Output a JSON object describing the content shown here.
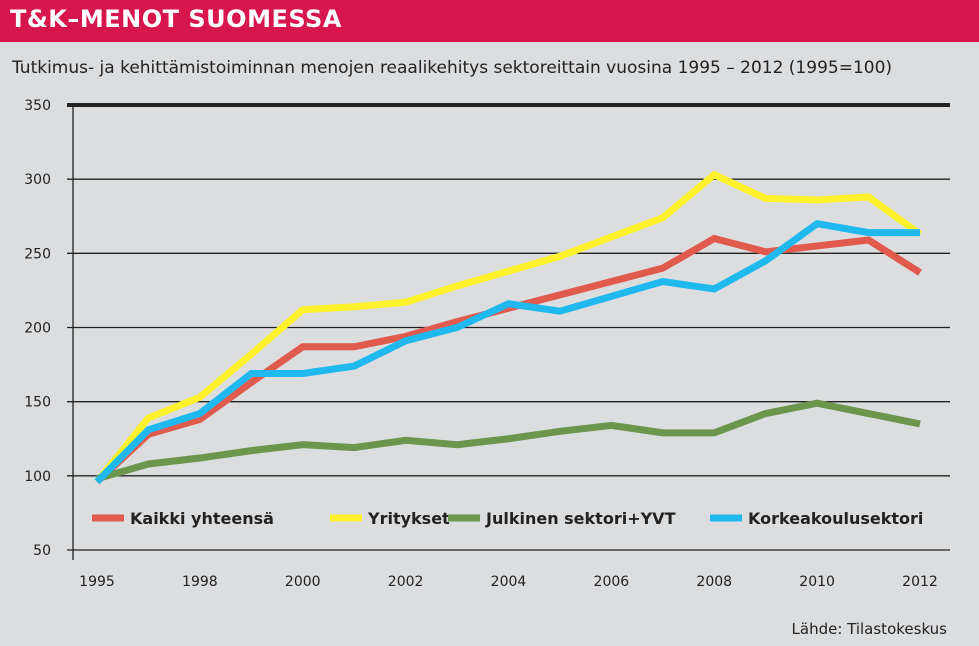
{
  "header": {
    "title": "T&K–MENOT SUOMESSA"
  },
  "source": "Lähde: Tilastokeskus",
  "chart_data": {
    "type": "line",
    "title": "Tutkimus- ja kehittämistoiminnan menojen reaalikehitys sektoreittain vuosina 1995 – 2012 (1995=100)",
    "x": [
      1995,
      1997,
      1998,
      1999,
      2000,
      2001,
      2002,
      2003,
      2004,
      2005,
      2006,
      2007,
      2008,
      2009,
      2010,
      2011,
      2012
    ],
    "xtick_labels": [
      "1995",
      "1998",
      "2000",
      "2002",
      "2004",
      "2006",
      "2008",
      "2010",
      "2012"
    ],
    "ytick_labels": [
      "50",
      "100",
      "150",
      "200",
      "250",
      "300",
      "350"
    ],
    "ylim": [
      50,
      350
    ],
    "grid": "horizontal",
    "legend_placement": "bottom",
    "series": [
      {
        "name": "Kaikki yhteensä",
        "color": "#e05a4e",
        "values": [
          96,
          128,
          138,
          163,
          187,
          187,
          194,
          204,
          213,
          222,
          231,
          240,
          260,
          251,
          255,
          259,
          237
        ]
      },
      {
        "name": "Yritykset",
        "color": "#fff22d",
        "values": [
          96,
          139,
          153,
          182,
          212,
          214,
          217,
          228,
          238,
          248,
          261,
          274,
          303,
          287,
          286,
          288,
          263
        ]
      },
      {
        "name": "Julkinen sektori+YVT",
        "color": "#6b964d",
        "values": [
          98,
          108,
          112,
          117,
          121,
          119,
          124,
          121,
          125,
          130,
          134,
          129,
          129,
          142,
          149,
          142,
          135
        ]
      },
      {
        "name": "Korkeakoulusektori",
        "color": "#1fb9ef",
        "values": [
          96,
          131,
          142,
          169,
          169,
          174,
          191,
          200,
          216,
          211,
          221,
          231,
          226,
          245,
          270,
          264,
          264
        ]
      }
    ]
  }
}
